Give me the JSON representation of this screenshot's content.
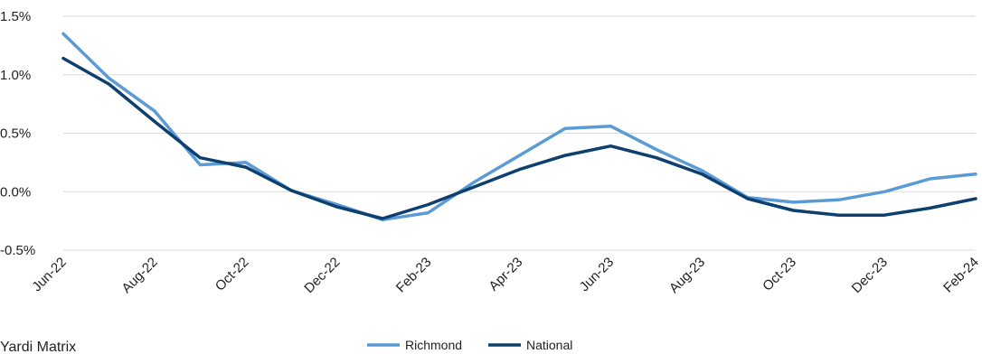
{
  "chart_data": {
    "type": "line",
    "x": [
      "Jun-22",
      "Jul-22",
      "Aug-22",
      "Sep-22",
      "Oct-22",
      "Nov-22",
      "Dec-22",
      "Jan-23",
      "Feb-23",
      "Mar-23",
      "Apr-23",
      "May-23",
      "Jun-23",
      "Jul-23",
      "Aug-23",
      "Sep-23",
      "Oct-23",
      "Nov-23",
      "Dec-23",
      "Jan-24",
      "Feb-24"
    ],
    "x_tick_labels": [
      "Jun-22",
      "Aug-22",
      "Oct-22",
      "Dec-22",
      "Feb-23",
      "Apr-23",
      "Jun-23",
      "Aug-23",
      "Oct-23",
      "Dec-23",
      "Feb-24"
    ],
    "y_tick_labels": [
      "1.5%",
      "1.0%",
      "0.5%",
      "0.0%",
      "-0.5%"
    ],
    "y_ticks": [
      1.5,
      1.0,
      0.5,
      0.0,
      -0.5
    ],
    "ylim": [
      -0.5,
      1.5
    ],
    "grid": true,
    "legend_position": "bottom-center",
    "series": [
      {
        "name": "Richmond",
        "color": "#5b9bd5",
        "values": [
          1.35,
          0.97,
          0.69,
          0.23,
          0.25,
          0.01,
          -0.11,
          -0.24,
          -0.18,
          0.08,
          0.31,
          0.54,
          0.56,
          0.36,
          0.18,
          -0.05,
          -0.09,
          -0.07,
          0.0,
          0.11,
          0.15
        ]
      },
      {
        "name": "National",
        "color": "#0d3f6f",
        "values": [
          1.14,
          0.92,
          0.6,
          0.29,
          0.21,
          0.01,
          -0.13,
          -0.23,
          -0.11,
          0.04,
          0.19,
          0.31,
          0.39,
          0.29,
          0.15,
          -0.06,
          -0.16,
          -0.2,
          -0.2,
          -0.14,
          -0.06
        ]
      }
    ]
  },
  "source": "Yardi Matrix"
}
